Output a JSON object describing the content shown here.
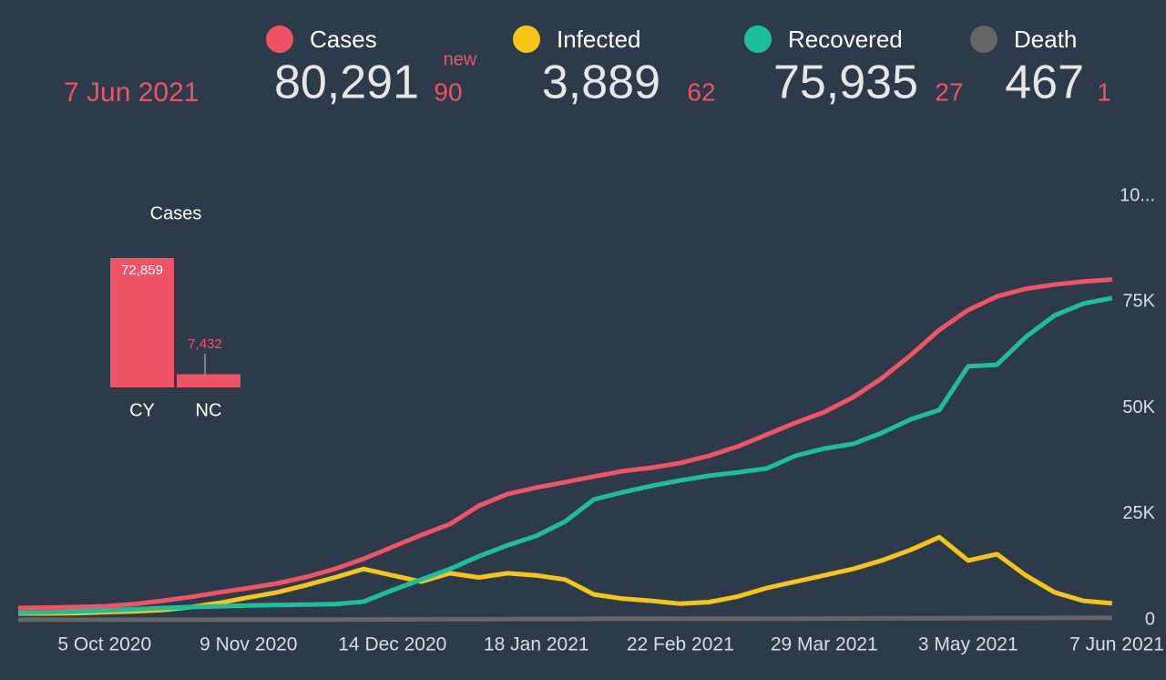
{
  "header": {
    "date": "7 Jun 2021",
    "new_label": "new",
    "stats": [
      {
        "name": "Cases",
        "color": "#ef5366",
        "total": "80,291",
        "new": 90
      },
      {
        "name": "Infected",
        "color": "#f5c518",
        "total": "3,889",
        "new": 62
      },
      {
        "name": "Recovered",
        "color": "#1dbf9a",
        "total": "75,935",
        "new": 27
      },
      {
        "name": "Death",
        "color": "#666666",
        "total": "467",
        "new": 1
      }
    ]
  },
  "chart_data": [
    {
      "type": "line",
      "categories": [
        null,
        null,
        null,
        "5 Oct 2020",
        null,
        null,
        null,
        null,
        "9 Nov 2020",
        null,
        null,
        null,
        null,
        "14 Dec 2020",
        null,
        null,
        null,
        null,
        "18 Jan 2021",
        null,
        null,
        null,
        null,
        "22 Feb 2021",
        null,
        null,
        null,
        null,
        "29 Mar 2021",
        null,
        null,
        null,
        null,
        "3 May 2021",
        null,
        null,
        null,
        null,
        "7 Jun 2021"
      ],
      "ylim": [
        0,
        100000
      ],
      "yticks": [
        0,
        {
          "value": 25000,
          "label": "25K"
        },
        {
          "value": 50000,
          "label": "50K"
        },
        {
          "value": 75000,
          "label": "75K"
        },
        {
          "value": 100000,
          "label": "10..."
        }
      ],
      "grid": false,
      "series": [
        {
          "name": "Death",
          "color": "#666666",
          "values": [
            20,
            22,
            23,
            24,
            25,
            27,
            30,
            33,
            40,
            50,
            60,
            75,
            90,
            110,
            130,
            150,
            170,
            190,
            210,
            220,
            230,
            240,
            245,
            250,
            255,
            262,
            270,
            280,
            300,
            320,
            340,
            360,
            380,
            400,
            420,
            435,
            450,
            460,
            467
          ]
        },
        {
          "name": "Infected",
          "color": "#f5c518",
          "values": [
            1500,
            1500,
            1600,
            1800,
            2000,
            2300,
            3000,
            4000,
            5300,
            6500,
            8200,
            10000,
            12000,
            10500,
            9000,
            11000,
            10000,
            11000,
            10500,
            9500,
            6000,
            5000,
            4500,
            3800,
            4200,
            5500,
            7500,
            9000,
            10500,
            12000,
            14000,
            16500,
            19500,
            14000,
            15500,
            10500,
            6500,
            4500,
            3889
          ]
        },
        {
          "name": "Recovered",
          "color": "#1dbf9a",
          "values": [
            1700,
            1800,
            2000,
            2200,
            2500,
            2800,
            3000,
            3200,
            3400,
            3500,
            3600,
            3700,
            4300,
            7000,
            9500,
            12000,
            15000,
            17600,
            19800,
            23200,
            28400,
            30100,
            31600,
            32900,
            34000,
            34800,
            35700,
            38700,
            40400,
            41500,
            44100,
            47300,
            49500,
            59800,
            60200,
            66700,
            71800,
            74600,
            75935
          ]
        },
        {
          "name": "Cases",
          "color": "#ef5366",
          "values": [
            2800,
            2900,
            3000,
            3200,
            3700,
            4500,
            5400,
            6500,
            7500,
            8600,
            10100,
            12000,
            14400,
            17200,
            20000,
            22600,
            26900,
            29700,
            31200,
            32500,
            33800,
            35100,
            35900,
            37000,
            38700,
            40900,
            43700,
            46500,
            49000,
            52500,
            57000,
            62400,
            68400,
            73100,
            76300,
            78100,
            79100,
            79800,
            80291
          ]
        }
      ]
    },
    {
      "type": "bar",
      "title": "Cases",
      "categories": [
        "CY",
        "NC"
      ],
      "values": [
        72859,
        7432
      ],
      "value_labels": [
        "72,859",
        "7,432"
      ],
      "color": "#ef5366"
    }
  ]
}
